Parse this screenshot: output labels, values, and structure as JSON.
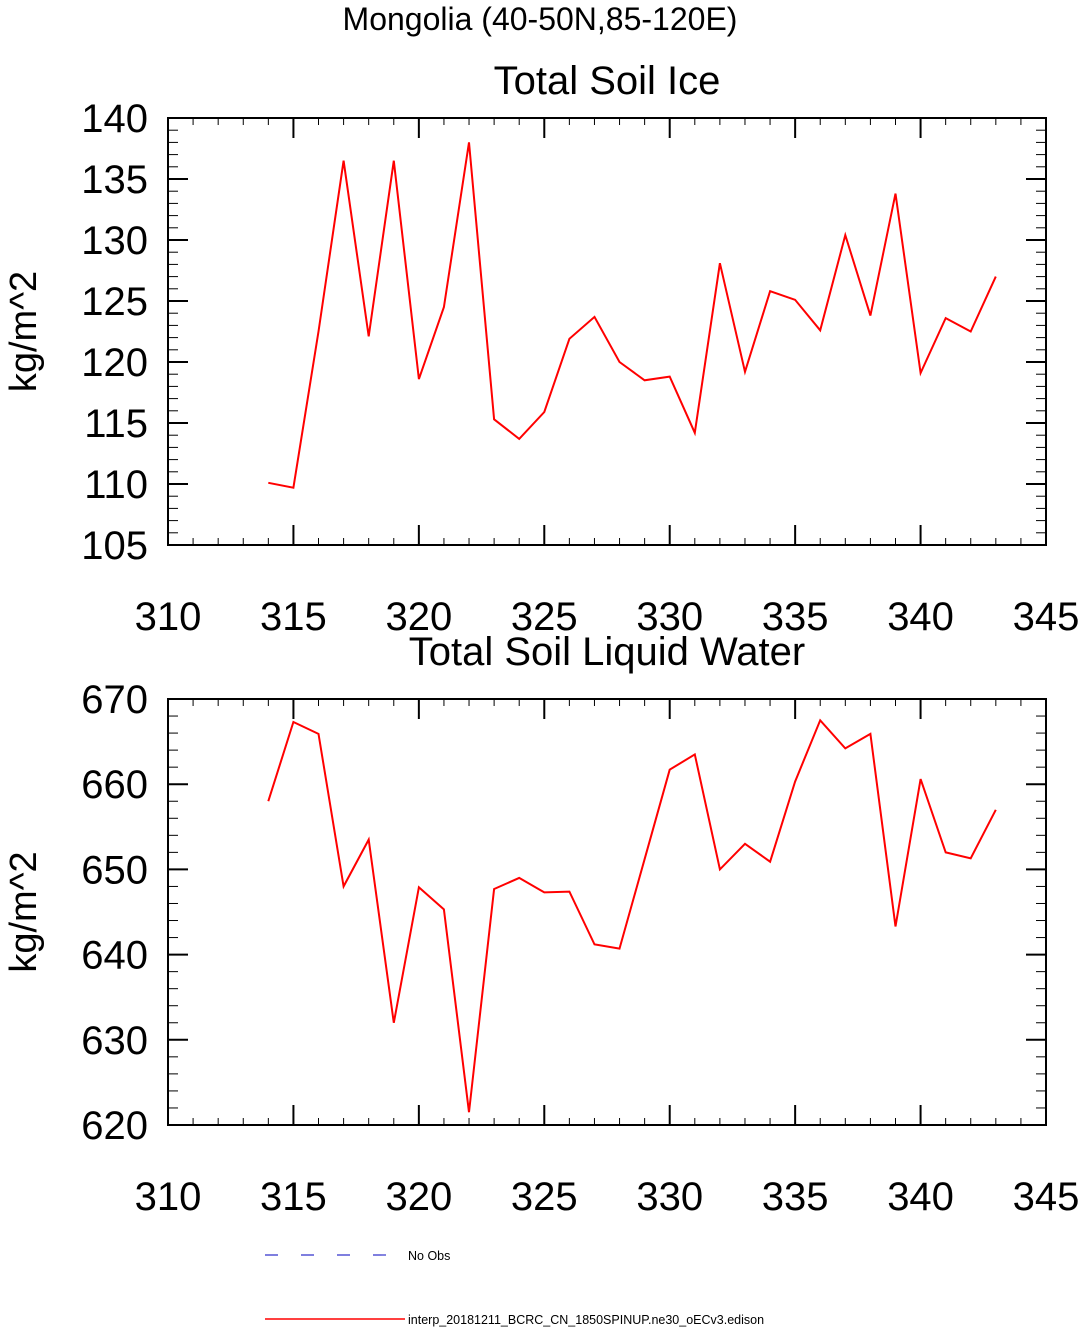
{
  "figure": {
    "main_title": "Mongolia (40-50N,85-120E)"
  },
  "chart_data": [
    {
      "type": "line",
      "title": "Total Soil Ice",
      "xlabel": "",
      "ylabel": "kg/m^2",
      "xlim": [
        310,
        345
      ],
      "ylim": [
        105,
        140
      ],
      "xticks": [
        310,
        315,
        320,
        325,
        330,
        335,
        340,
        345
      ],
      "yticks": [
        105,
        110,
        115,
        120,
        125,
        130,
        135,
        140
      ],
      "x_minor_step": 1,
      "y_minor_step": 1,
      "series": [
        {
          "name": "interp_20181211_BCRC_CN_1850SPINUP.ne30_oECv3.edison",
          "color": "#ff0000",
          "x": [
            314,
            315,
            316,
            317,
            318,
            319,
            320,
            321,
            322,
            323,
            324,
            325,
            326,
            327,
            328,
            329,
            330,
            331,
            332,
            333,
            334,
            335,
            336,
            337,
            338,
            339,
            340,
            341,
            342,
            343
          ],
          "values": [
            110.1,
            109.7,
            122.5,
            136.5,
            122.1,
            136.5,
            118.6,
            124.5,
            138.0,
            115.3,
            113.7,
            115.9,
            121.9,
            123.7,
            120.0,
            118.5,
            118.8,
            114.2,
            128.1,
            119.2,
            125.8,
            125.1,
            122.6,
            130.4,
            123.8,
            133.8,
            119.1,
            123.6,
            122.5,
            127.0
          ]
        }
      ]
    },
    {
      "type": "line",
      "title": "Total Soil Liquid Water",
      "xlabel": "",
      "ylabel": "kg/m^2",
      "xlim": [
        310,
        345
      ],
      "ylim": [
        620,
        670
      ],
      "xticks": [
        310,
        315,
        320,
        325,
        330,
        335,
        340,
        345
      ],
      "yticks": [
        620,
        630,
        640,
        650,
        660,
        670
      ],
      "x_minor_step": 1,
      "y_minor_step": 2,
      "series": [
        {
          "name": "interp_20181211_BCRC_CN_1850SPINUP.ne30_oECv3.edison",
          "color": "#ff0000",
          "x": [
            314,
            315,
            316,
            317,
            318,
            319,
            320,
            321,
            322,
            323,
            324,
            325,
            326,
            327,
            328,
            329,
            330,
            331,
            332,
            333,
            334,
            335,
            336,
            337,
            338,
            339,
            340,
            341,
            342,
            343
          ],
          "values": [
            658.0,
            667.3,
            665.9,
            648.0,
            653.5,
            632.0,
            647.9,
            645.3,
            621.5,
            647.7,
            649.0,
            647.3,
            647.4,
            641.2,
            640.7,
            651.2,
            661.7,
            663.5,
            650.0,
            653.0,
            650.9,
            660.3,
            667.5,
            664.2,
            665.9,
            643.3,
            660.6,
            652.0,
            651.3,
            657.0
          ]
        }
      ]
    }
  ],
  "legend": [
    {
      "label": "No Obs",
      "color": "#3333cc",
      "style": "dashed"
    },
    {
      "label": "interp_20181211_BCRC_CN_1850SPINUP.ne30_oECv3.edison",
      "color": "#ff0000",
      "style": "solid"
    }
  ]
}
